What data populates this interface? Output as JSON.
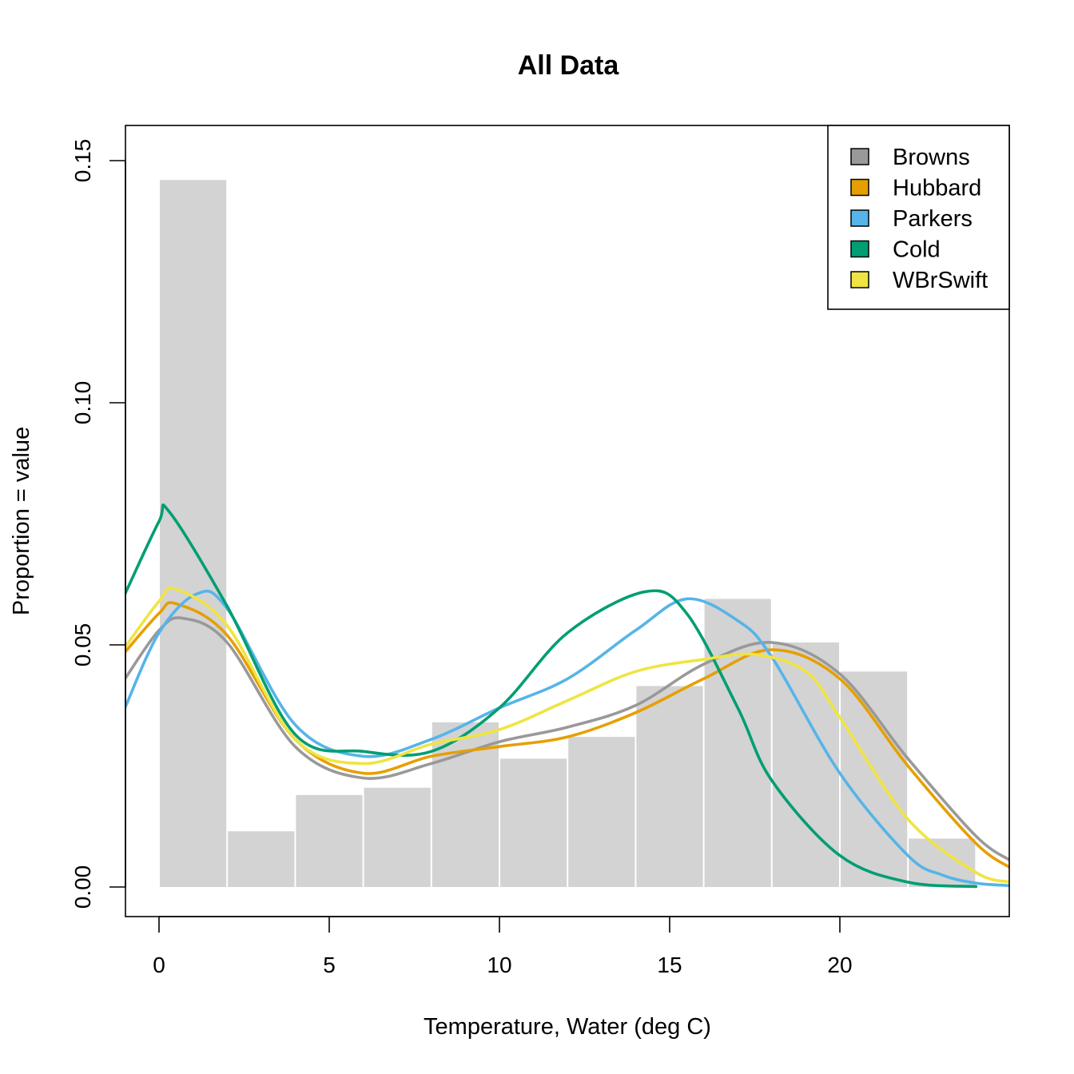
{
  "chart_data": {
    "type": "bar",
    "title": "All Data",
    "xlabel": "Temperature, Water (deg C)",
    "ylabel": "Proportion = value",
    "xlim": [
      -1,
      25
    ],
    "ylim": [
      0,
      0.15
    ],
    "x_ticks": [
      "0",
      "5",
      "10",
      "15",
      "20"
    ],
    "y_ticks": [
      "0.00",
      "0.05",
      "0.10",
      "0.15"
    ],
    "legend_position": "top-right",
    "histogram": {
      "bin_edges": [
        0,
        2,
        4,
        6,
        8,
        10,
        12,
        14,
        16,
        18,
        20,
        22,
        24
      ],
      "values": [
        0.146,
        0.0115,
        0.019,
        0.0205,
        0.034,
        0.0265,
        0.031,
        0.0415,
        0.0595,
        0.0505,
        0.0445,
        0.01
      ],
      "color": "#d3d3d3"
    },
    "series": [
      {
        "name": "Browns",
        "color": "#999999",
        "x": [
          -1,
          0,
          0.7,
          2,
          4,
          6,
          8,
          10,
          12,
          14,
          16,
          18,
          20,
          22,
          24,
          25
        ],
        "y": [
          0.043,
          0.053,
          0.0555,
          0.0505,
          0.029,
          0.0225,
          0.0255,
          0.03,
          0.033,
          0.0375,
          0.046,
          0.0505,
          0.044,
          0.0265,
          0.0105,
          0.0055
        ]
      },
      {
        "name": "Hubbard",
        "color": "#E69F00",
        "x": [
          -1,
          0,
          0.5,
          2,
          4,
          6,
          8,
          10,
          12,
          14,
          16,
          18,
          20,
          22,
          24,
          25
        ],
        "y": [
          0.0485,
          0.0565,
          0.0585,
          0.052,
          0.0305,
          0.0235,
          0.027,
          0.029,
          0.031,
          0.036,
          0.043,
          0.049,
          0.043,
          0.025,
          0.009,
          0.004
        ]
      },
      {
        "name": "Parkers",
        "color": "#56B4E9",
        "x": [
          -1,
          0,
          1.1,
          2,
          4,
          6,
          8,
          10,
          12,
          14,
          15.5,
          17,
          18,
          20,
          22,
          23,
          24,
          25
        ],
        "y": [
          0.037,
          0.0525,
          0.0605,
          0.0575,
          0.0335,
          0.027,
          0.0305,
          0.037,
          0.043,
          0.053,
          0.0595,
          0.055,
          0.0475,
          0.0235,
          0.0065,
          0.0025,
          0.0008,
          0.0003
        ]
      },
      {
        "name": "Cold",
        "color": "#009E73",
        "x": [
          -1,
          0,
          0.3,
          2,
          4,
          6,
          8,
          10,
          12,
          14.3,
          15.5,
          17,
          18,
          20,
          22,
          24
        ],
        "y": [
          0.0605,
          0.0755,
          0.0775,
          0.058,
          0.0315,
          0.028,
          0.028,
          0.037,
          0.0525,
          0.061,
          0.0565,
          0.037,
          0.022,
          0.0065,
          0.001,
          0.0001
        ]
      },
      {
        "name": "WBrSwift",
        "color": "#F0E442",
        "x": [
          -1,
          0,
          0.5,
          2,
          4,
          6,
          8,
          10,
          12,
          14,
          16,
          17.5,
          19,
          20,
          22,
          24,
          25
        ],
        "y": [
          0.0495,
          0.059,
          0.0615,
          0.054,
          0.0305,
          0.0255,
          0.0295,
          0.0325,
          0.0385,
          0.0445,
          0.047,
          0.048,
          0.0445,
          0.035,
          0.014,
          0.003,
          0.001
        ]
      }
    ]
  }
}
